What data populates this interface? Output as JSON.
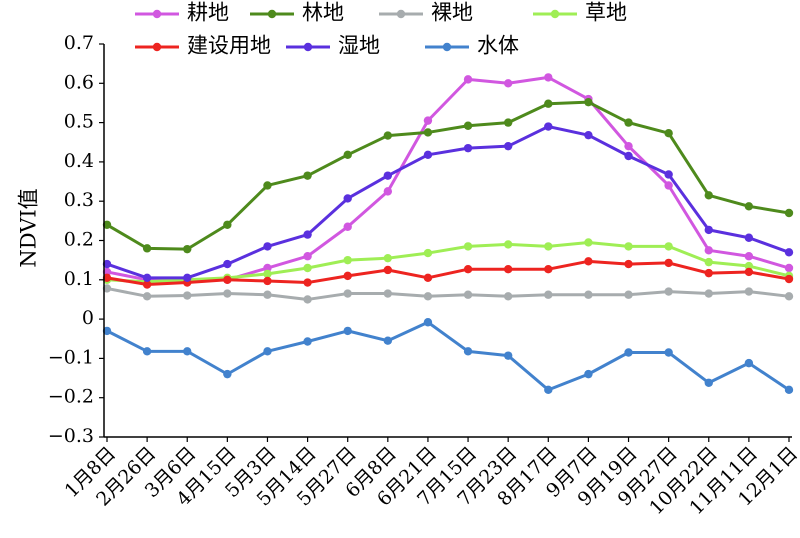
{
  "chart_data": {
    "type": "line",
    "title": "",
    "xlabel": "",
    "ylabel": "NDVI值",
    "ylim": [
      -0.3,
      0.7
    ],
    "yticks": [
      -0.3,
      -0.2,
      -0.1,
      0,
      0.1,
      0.2,
      0.3,
      0.4,
      0.5,
      0.6,
      0.7
    ],
    "ytick_labels": [
      "−0.3",
      "−0.2",
      "−0.1",
      "0",
      "0.1",
      "0.2",
      "0.3",
      "0.4",
      "0.5",
      "0.6",
      "0.7"
    ],
    "grid": false,
    "legend_position": "top",
    "categories": [
      "1月8日",
      "2月26日",
      "3月6日",
      "4月15日",
      "5月3日",
      "5月14日",
      "5月27日",
      "6月8日",
      "6月21日",
      "7月15日",
      "7月23日",
      "8月17日",
      "9月7日",
      "9月19日",
      "9月27日",
      "10月22日",
      "11月11日",
      "12月1日"
    ],
    "series": [
      {
        "name": "耕地",
        "color": "#d157e0",
        "values": [
          0.12,
          0.1,
          0.1,
          0.1,
          0.13,
          0.16,
          0.235,
          0.325,
          0.505,
          0.61,
          0.6,
          0.615,
          0.56,
          0.44,
          0.34,
          0.175,
          0.16,
          0.13
        ]
      },
      {
        "name": "林地",
        "color": "#4e8a1c",
        "values": [
          0.24,
          0.18,
          0.178,
          0.24,
          0.34,
          0.365,
          0.418,
          0.467,
          0.475,
          0.492,
          0.5,
          0.548,
          0.552,
          0.5,
          0.473,
          0.315,
          0.287,
          0.27
        ]
      },
      {
        "name": "裸地",
        "color": "#a7acae",
        "values": [
          0.078,
          0.058,
          0.06,
          0.065,
          0.062,
          0.05,
          0.065,
          0.065,
          0.058,
          0.062,
          0.058,
          0.062,
          0.062,
          0.062,
          0.07,
          0.065,
          0.07,
          0.058
        ]
      },
      {
        "name": "草地",
        "color": "#9fee55",
        "values": [
          0.1,
          0.095,
          0.1,
          0.105,
          0.115,
          0.13,
          0.15,
          0.155,
          0.168,
          0.185,
          0.19,
          0.185,
          0.195,
          0.185,
          0.185,
          0.145,
          0.135,
          0.11
        ]
      },
      {
        "name": "建设用地",
        "color": "#ed2420",
        "values": [
          0.105,
          0.088,
          0.093,
          0.1,
          0.097,
          0.093,
          0.11,
          0.125,
          0.105,
          0.127,
          0.127,
          0.127,
          0.147,
          0.14,
          0.143,
          0.117,
          0.12,
          0.102
        ]
      },
      {
        "name": "湿地",
        "color": "#5a30de",
        "values": [
          0.14,
          0.105,
          0.105,
          0.14,
          0.185,
          0.215,
          0.307,
          0.365,
          0.418,
          0.435,
          0.44,
          0.49,
          0.468,
          0.415,
          0.368,
          0.227,
          0.207,
          0.17
        ]
      },
      {
        "name": "水体",
        "color": "#4282cd",
        "values": [
          -0.03,
          -0.082,
          -0.082,
          -0.14,
          -0.082,
          -0.057,
          -0.03,
          -0.055,
          -0.008,
          -0.082,
          -0.093,
          -0.18,
          -0.14,
          -0.085,
          -0.085,
          -0.162,
          -0.112,
          -0.18
        ]
      }
    ]
  }
}
